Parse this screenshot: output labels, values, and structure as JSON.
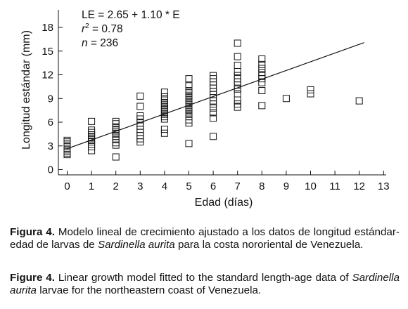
{
  "chart_data": {
    "type": "scatter",
    "xlabel": "Edad (días)",
    "ylabel": "Longitud estándar (mm)",
    "xlim": [
      -0.4,
      13
    ],
    "ylim": [
      -0.3,
      18.2
    ],
    "x_ticks": [
      0,
      1,
      2,
      3,
      4,
      5,
      6,
      7,
      8,
      9,
      10,
      11,
      12,
      13
    ],
    "y_ticks": [
      0,
      3,
      6,
      9,
      12,
      15,
      18
    ],
    "grid": false,
    "marker": "open-square",
    "annotations": [
      {
        "name": "equation",
        "text": "LE = 2.65 + 1.10 * E"
      },
      {
        "name": "r2-label",
        "text": "r",
        "sup": "2",
        "suffix": " = 0.78"
      },
      {
        "name": "n-label",
        "text": "n",
        "suffix": " = 236"
      }
    ],
    "fit_line": {
      "intercept": 2.65,
      "slope": 1.1,
      "x_range": [
        0,
        12.2
      ]
    },
    "points": [
      [
        0,
        1.9
      ],
      [
        0,
        2.1
      ],
      [
        0,
        2.3
      ],
      [
        0,
        2.5
      ],
      [
        0,
        2.7
      ],
      [
        0,
        2.9
      ],
      [
        0,
        3.1
      ],
      [
        0,
        3.3
      ],
      [
        0,
        3.5
      ],
      [
        0,
        3.7
      ],
      [
        1,
        2.4
      ],
      [
        1,
        2.9
      ],
      [
        1,
        3.2
      ],
      [
        1,
        3.5
      ],
      [
        1,
        3.8
      ],
      [
        1,
        4.1
      ],
      [
        1,
        4.4
      ],
      [
        1,
        4.7
      ],
      [
        1,
        5.0
      ],
      [
        1,
        6.1
      ],
      [
        2,
        1.6
      ],
      [
        2,
        3.1
      ],
      [
        2,
        3.4
      ],
      [
        2,
        3.8
      ],
      [
        2,
        4.2
      ],
      [
        2,
        4.5
      ],
      [
        2,
        4.8
      ],
      [
        2,
        5.1
      ],
      [
        2,
        5.4
      ],
      [
        2,
        5.8
      ],
      [
        2,
        6.1
      ],
      [
        3,
        3.5
      ],
      [
        3,
        3.9
      ],
      [
        3,
        4.3
      ],
      [
        3,
        4.7
      ],
      [
        3,
        5.1
      ],
      [
        3,
        5.5
      ],
      [
        3,
        5.9
      ],
      [
        3,
        6.4
      ],
      [
        3,
        6.8
      ],
      [
        3,
        8.0
      ],
      [
        3,
        9.3
      ],
      [
        4,
        4.6
      ],
      [
        4,
        5.1
      ],
      [
        4,
        6.4
      ],
      [
        4,
        6.7
      ],
      [
        4,
        7.0
      ],
      [
        4,
        7.3
      ],
      [
        4,
        7.6
      ],
      [
        4,
        7.9
      ],
      [
        4,
        8.2
      ],
      [
        4,
        8.5
      ],
      [
        4,
        8.8
      ],
      [
        4,
        9.2
      ],
      [
        4,
        9.8
      ],
      [
        5,
        3.3
      ],
      [
        5,
        5.9
      ],
      [
        5,
        6.3
      ],
      [
        5,
        6.7
      ],
      [
        5,
        7.0
      ],
      [
        5,
        7.3
      ],
      [
        5,
        7.6
      ],
      [
        5,
        7.9
      ],
      [
        5,
        8.2
      ],
      [
        5,
        8.5
      ],
      [
        5,
        8.8
      ],
      [
        5,
        9.1
      ],
      [
        5,
        9.4
      ],
      [
        5,
        9.7
      ],
      [
        5,
        10.0
      ],
      [
        5,
        10.6
      ],
      [
        5,
        11.5
      ],
      [
        6,
        4.2
      ],
      [
        6,
        6.5
      ],
      [
        6,
        7.2
      ],
      [
        6,
        7.8
      ],
      [
        6,
        8.3
      ],
      [
        6,
        8.7
      ],
      [
        6,
        9.1
      ],
      [
        6,
        9.5
      ],
      [
        6,
        9.9
      ],
      [
        6,
        10.3
      ],
      [
        6,
        10.7
      ],
      [
        6,
        11.1
      ],
      [
        6,
        11.5
      ],
      [
        6,
        11.9
      ],
      [
        7,
        7.9
      ],
      [
        7,
        8.3
      ],
      [
        7,
        8.8
      ],
      [
        7,
        9.6
      ],
      [
        7,
        10.2
      ],
      [
        7,
        10.7
      ],
      [
        7,
        11.1
      ],
      [
        7,
        11.5
      ],
      [
        7,
        11.9
      ],
      [
        7,
        12.4
      ],
      [
        7,
        13.2
      ],
      [
        7,
        14.3
      ],
      [
        7,
        16.0
      ],
      [
        8,
        8.1
      ],
      [
        8,
        10.0
      ],
      [
        8,
        11.0
      ],
      [
        8,
        11.5
      ],
      [
        8,
        11.9
      ],
      [
        8,
        12.3
      ],
      [
        8,
        12.8
      ],
      [
        8,
        13.3
      ],
      [
        8,
        14.0
      ],
      [
        9,
        9.0
      ],
      [
        10,
        9.6
      ],
      [
        10,
        10.1
      ],
      [
        12,
        8.7
      ]
    ]
  },
  "captions": {
    "spanish": {
      "label": "Figura 4.",
      "text_before": " Modelo lineal de crecimiento ajustado a los datos de longitud estándar-edad de larvas de ",
      "species": "Sardinella aurita",
      "text_after": " para la costa nororiental de Venezuela."
    },
    "english": {
      "label": "Figure 4.",
      "text_before": " Linear growth model fitted to the standard length-age data of ",
      "species": "Sardinella aurita",
      "text_after": " larvae for the northeastern coast of Venezuela."
    }
  }
}
